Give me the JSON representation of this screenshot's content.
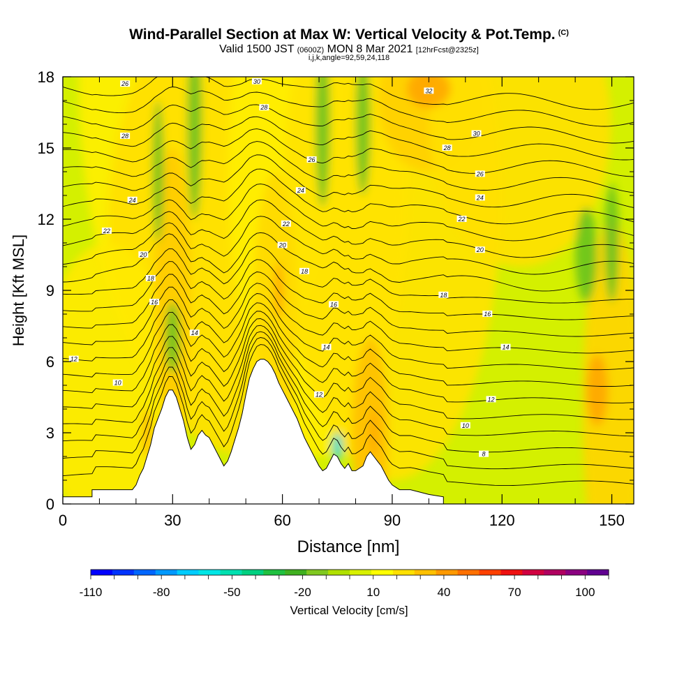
{
  "header": {
    "title": "Wind-Parallel Section at Max W: Vertical Velocity & Pot.Temp.",
    "title_mark": "(C)",
    "valid_prefix": "Valid 1500 JST",
    "valid_zulu": "(0600Z)",
    "valid_date": "MON 8 Mar 2021",
    "forecast": "[12hrFcst@2325z]",
    "indices": "i,j,k,angle=92,59,24,118"
  },
  "chart_data": {
    "type": "heatmap",
    "xlabel": "Distance [nm]",
    "ylabel": "Height [Kft MSL]",
    "xlim": [
      0,
      156
    ],
    "ylim": [
      0,
      18
    ],
    "x_ticks": [
      0,
      30,
      60,
      90,
      120,
      150
    ],
    "y_ticks": [
      0,
      3,
      6,
      9,
      12,
      15,
      18
    ],
    "terrain": [
      [
        0,
        0.3
      ],
      [
        8,
        0.3
      ],
      [
        8,
        0.6
      ],
      [
        19,
        0.6
      ],
      [
        20,
        0.8
      ],
      [
        21,
        1.2
      ],
      [
        22,
        1.5
      ],
      [
        23,
        2.0
      ],
      [
        24,
        2.5
      ],
      [
        25,
        3.2
      ],
      [
        26,
        3.6
      ],
      [
        27,
        4.0
      ],
      [
        28,
        4.5
      ],
      [
        29,
        4.8
      ],
      [
        30,
        4.8
      ],
      [
        31,
        4.5
      ],
      [
        32,
        4.0
      ],
      [
        33,
        3.5
      ],
      [
        34,
        2.8
      ],
      [
        35,
        2.3
      ],
      [
        36,
        2.5
      ],
      [
        37,
        2.9
      ],
      [
        38,
        3.1
      ],
      [
        39,
        2.9
      ],
      [
        40,
        2.8
      ],
      [
        41,
        2.5
      ],
      [
        42,
        2.2
      ],
      [
        43,
        1.9
      ],
      [
        44,
        1.6
      ],
      [
        45,
        1.8
      ],
      [
        46,
        2.2
      ],
      [
        47,
        2.7
      ],
      [
        48,
        3.2
      ],
      [
        49,
        3.8
      ],
      [
        50,
        4.6
      ],
      [
        51,
        5.3
      ],
      [
        52,
        5.7
      ],
      [
        53,
        6.0
      ],
      [
        54,
        6.1
      ],
      [
        55,
        6.1
      ],
      [
        56,
        6.0
      ],
      [
        57,
        5.8
      ],
      [
        58,
        5.5
      ],
      [
        59,
        5.1
      ],
      [
        60,
        4.8
      ],
      [
        61,
        4.5
      ],
      [
        62,
        4.2
      ],
      [
        63,
        3.9
      ],
      [
        64,
        3.6
      ],
      [
        65,
        3.2
      ],
      [
        66,
        2.8
      ],
      [
        67,
        2.5
      ],
      [
        68,
        2.2
      ],
      [
        69,
        1.9
      ],
      [
        70,
        1.6
      ],
      [
        71,
        1.4
      ],
      [
        72,
        1.5
      ],
      [
        73,
        1.8
      ],
      [
        74,
        2.1
      ],
      [
        75,
        2.0
      ],
      [
        76,
        1.7
      ],
      [
        77,
        1.5
      ],
      [
        78,
        1.7
      ],
      [
        79,
        1.4
      ],
      [
        80,
        1.4
      ],
      [
        81,
        1.5
      ],
      [
        82,
        1.6
      ],
      [
        83,
        2.0
      ],
      [
        84,
        2.2
      ],
      [
        85,
        2.0
      ],
      [
        86,
        1.8
      ],
      [
        87,
        1.6
      ],
      [
        88,
        1.3
      ],
      [
        89,
        1.0
      ],
      [
        90,
        0.8
      ],
      [
        92,
        0.6
      ],
      [
        95,
        0.6
      ],
      [
        100,
        0.4
      ],
      [
        104,
        0.3
      ],
      [
        104,
        0
      ],
      [
        156,
        0
      ]
    ],
    "theta_contour_levels": [
      8,
      10,
      12,
      14,
      16,
      18,
      20,
      22,
      24,
      26,
      28,
      30,
      32
    ],
    "contour_labels": [
      {
        "text": "8",
        "x": 115,
        "y": 2.1
      },
      {
        "text": "10",
        "x": 110,
        "y": 3.3
      },
      {
        "text": "12",
        "x": 117,
        "y": 4.4
      },
      {
        "text": "14",
        "x": 121,
        "y": 6.6
      },
      {
        "text": "16",
        "x": 116,
        "y": 8.0
      },
      {
        "text": "18",
        "x": 104,
        "y": 8.8
      },
      {
        "text": "20",
        "x": 114,
        "y": 10.7
      },
      {
        "text": "22",
        "x": 109,
        "y": 12.0
      },
      {
        "text": "24",
        "x": 114,
        "y": 12.9
      },
      {
        "text": "26",
        "x": 114,
        "y": 13.9
      },
      {
        "text": "28",
        "x": 105,
        "y": 15.0
      },
      {
        "text": "30",
        "x": 113,
        "y": 15.6
      },
      {
        "text": "32",
        "x": 100,
        "y": 17.4
      },
      {
        "text": "30",
        "x": 53,
        "y": 17.8
      },
      {
        "text": "28",
        "x": 55,
        "y": 16.7
      },
      {
        "text": "26",
        "x": 68,
        "y": 14.5
      },
      {
        "text": "24",
        "x": 65,
        "y": 13.2
      },
      {
        "text": "22",
        "x": 61,
        "y": 11.8
      },
      {
        "text": "20",
        "x": 60,
        "y": 10.9
      },
      {
        "text": "18",
        "x": 66,
        "y": 9.8
      },
      {
        "text": "16",
        "x": 74,
        "y": 8.4
      },
      {
        "text": "14",
        "x": 72,
        "y": 6.6
      },
      {
        "text": "12",
        "x": 70,
        "y": 4.6
      },
      {
        "text": "26",
        "x": 17,
        "y": 17.7
      },
      {
        "text": "28",
        "x": 17,
        "y": 15.5
      },
      {
        "text": "24",
        "x": 19,
        "y": 12.8
      },
      {
        "text": "22",
        "x": 12,
        "y": 11.5
      },
      {
        "text": "20",
        "x": 22,
        "y": 10.5
      },
      {
        "text": "18",
        "x": 24,
        "y": 9.5
      },
      {
        "text": "16",
        "x": 25,
        "y": 8.5
      },
      {
        "text": "14",
        "x": 36,
        "y": 7.2
      },
      {
        "text": "12",
        "x": 3,
        "y": 6.1
      },
      {
        "text": "10",
        "x": 15,
        "y": 5.1
      }
    ],
    "colorbar": {
      "label": "Vertical Velocity [cm/s]",
      "min": -110,
      "max": 110,
      "step": 10,
      "tick_labels": [
        "-110",
        "-80",
        "-50",
        "-20",
        "10",
        "40",
        "70",
        "100"
      ],
      "colors": [
        "#0000ff",
        "#0033ff",
        "#0066ff",
        "#0099ff",
        "#00ccff",
        "#00e6e6",
        "#00e0b0",
        "#00d080",
        "#20c040",
        "#40b020",
        "#80c820",
        "#b0e000",
        "#d8f000",
        "#ffff00",
        "#ffe000",
        "#ffc000",
        "#ff9900",
        "#ff7000",
        "#ff4000",
        "#ee1010",
        "#d00040",
        "#b00060",
        "#8a0080",
        "#600090"
      ]
    }
  }
}
